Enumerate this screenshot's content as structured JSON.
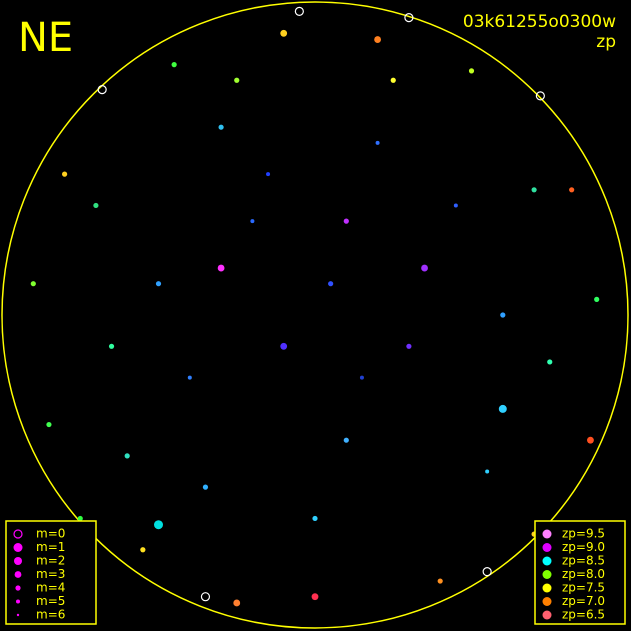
{
  "chart_data": {
    "type": "scatter",
    "corner_label": "NE",
    "title": "03k61255o0300w",
    "subtitle": "zp",
    "xlim": [
      -1,
      1
    ],
    "ylim": [
      -1,
      1
    ],
    "x": [
      0.05,
      -0.2,
      0.3,
      -0.4,
      0.1,
      0.45,
      -0.1,
      -0.5,
      0.2,
      -0.3,
      0.6,
      0.0,
      -0.6,
      0.55,
      0.35,
      -0.15,
      0.15,
      -0.35,
      0.7,
      -0.7,
      -0.1,
      0.2,
      -0.45,
      0.5,
      -0.8,
      0.82,
      -0.9,
      0.9,
      -0.85,
      0.88,
      -0.55,
      0.4,
      0.0,
      -0.25,
      0.7,
      -0.75,
      -0.05,
      0.3,
      -0.68,
      0.72,
      -0.35,
      0.55,
      -0.5,
      0.6,
      -0.3,
      0.1,
      -0.65,
      0.75,
      0.25,
      -0.25
    ],
    "y": [
      0.1,
      0.3,
      -0.1,
      -0.2,
      -0.4,
      0.35,
      -0.1,
      0.1,
      0.55,
      0.6,
      0.0,
      -0.65,
      -0.45,
      -0.5,
      0.15,
      0.45,
      -0.2,
      -0.55,
      0.4,
      0.35,
      0.9,
      0.88,
      0.8,
      0.78,
      0.45,
      0.4,
      0.1,
      0.05,
      -0.35,
      -0.4,
      -0.75,
      -0.85,
      -0.9,
      -0.92,
      -0.7,
      -0.65,
      0.97,
      0.95,
      0.72,
      0.7,
      -0.9,
      -0.82,
      -0.67,
      -0.3,
      0.15,
      0.3,
      -0.1,
      -0.15,
      0.75,
      0.75
    ],
    "m": [
      4,
      5,
      4,
      5,
      4,
      5,
      3,
      4,
      5,
      4,
      4,
      4,
      4,
      5,
      3,
      5,
      5,
      4,
      4,
      4,
      3,
      3,
      4,
      4,
      4,
      4,
      4,
      4,
      4,
      3,
      4,
      4,
      3,
      3,
      4,
      4,
      0,
      0,
      0,
      0,
      0,
      0,
      1,
      2,
      3,
      4,
      4,
      4,
      4,
      4
    ],
    "colors": [
      "#3050ff",
      "#2a6aff",
      "#7030ff",
      "#3080ff",
      "#40b0ff",
      "#3060ff",
      "#5030ff",
      "#30a0ff",
      "#3070ff",
      "#30c0f0",
      "#30a0ff",
      "#30d0ff",
      "#30e0c0",
      "#30d0ff",
      "#a030ff",
      "#2040ff",
      "#2040d0",
      "#30b0ff",
      "#30e0a0",
      "#30e080",
      "#ffd020",
      "#ff8020",
      "#40ff40",
      "#c0ff20",
      "#ffd020",
      "#ff6020",
      "#80ff30",
      "#30ff60",
      "#40ff50",
      "#ff5020",
      "#ffe020",
      "#ff9020",
      "#ff3050",
      "#ff8030",
      "#ffd020",
      "#30ff40",
      "#ffffff",
      "#ffffff",
      "#ffffff",
      "#ffffff",
      "#ffffff",
      "#ffffff",
      "#00e0e0",
      "#30d0ff",
      "#ff30ff",
      "#c030ff",
      "#30ffa0",
      "#30ffb0",
      "#ffff30",
      "#a0ff30"
    ],
    "size_legend": {
      "labels": [
        "m=0",
        "m=1",
        "m=2",
        "m=3",
        "m=4",
        "m=5",
        "m=6"
      ],
      "color": "#ff00ff"
    },
    "color_legend": {
      "labels": [
        "zp=9.5",
        "zp=9.0",
        "zp=8.5",
        "zp=8.0",
        "zp=7.5",
        "zp=7.0",
        "zp=6.5"
      ],
      "colors": [
        "#ff80ff",
        "#e000ff",
        "#00ffff",
        "#80ff00",
        "#ffff00",
        "#ff8000",
        "#ff6070"
      ]
    }
  }
}
